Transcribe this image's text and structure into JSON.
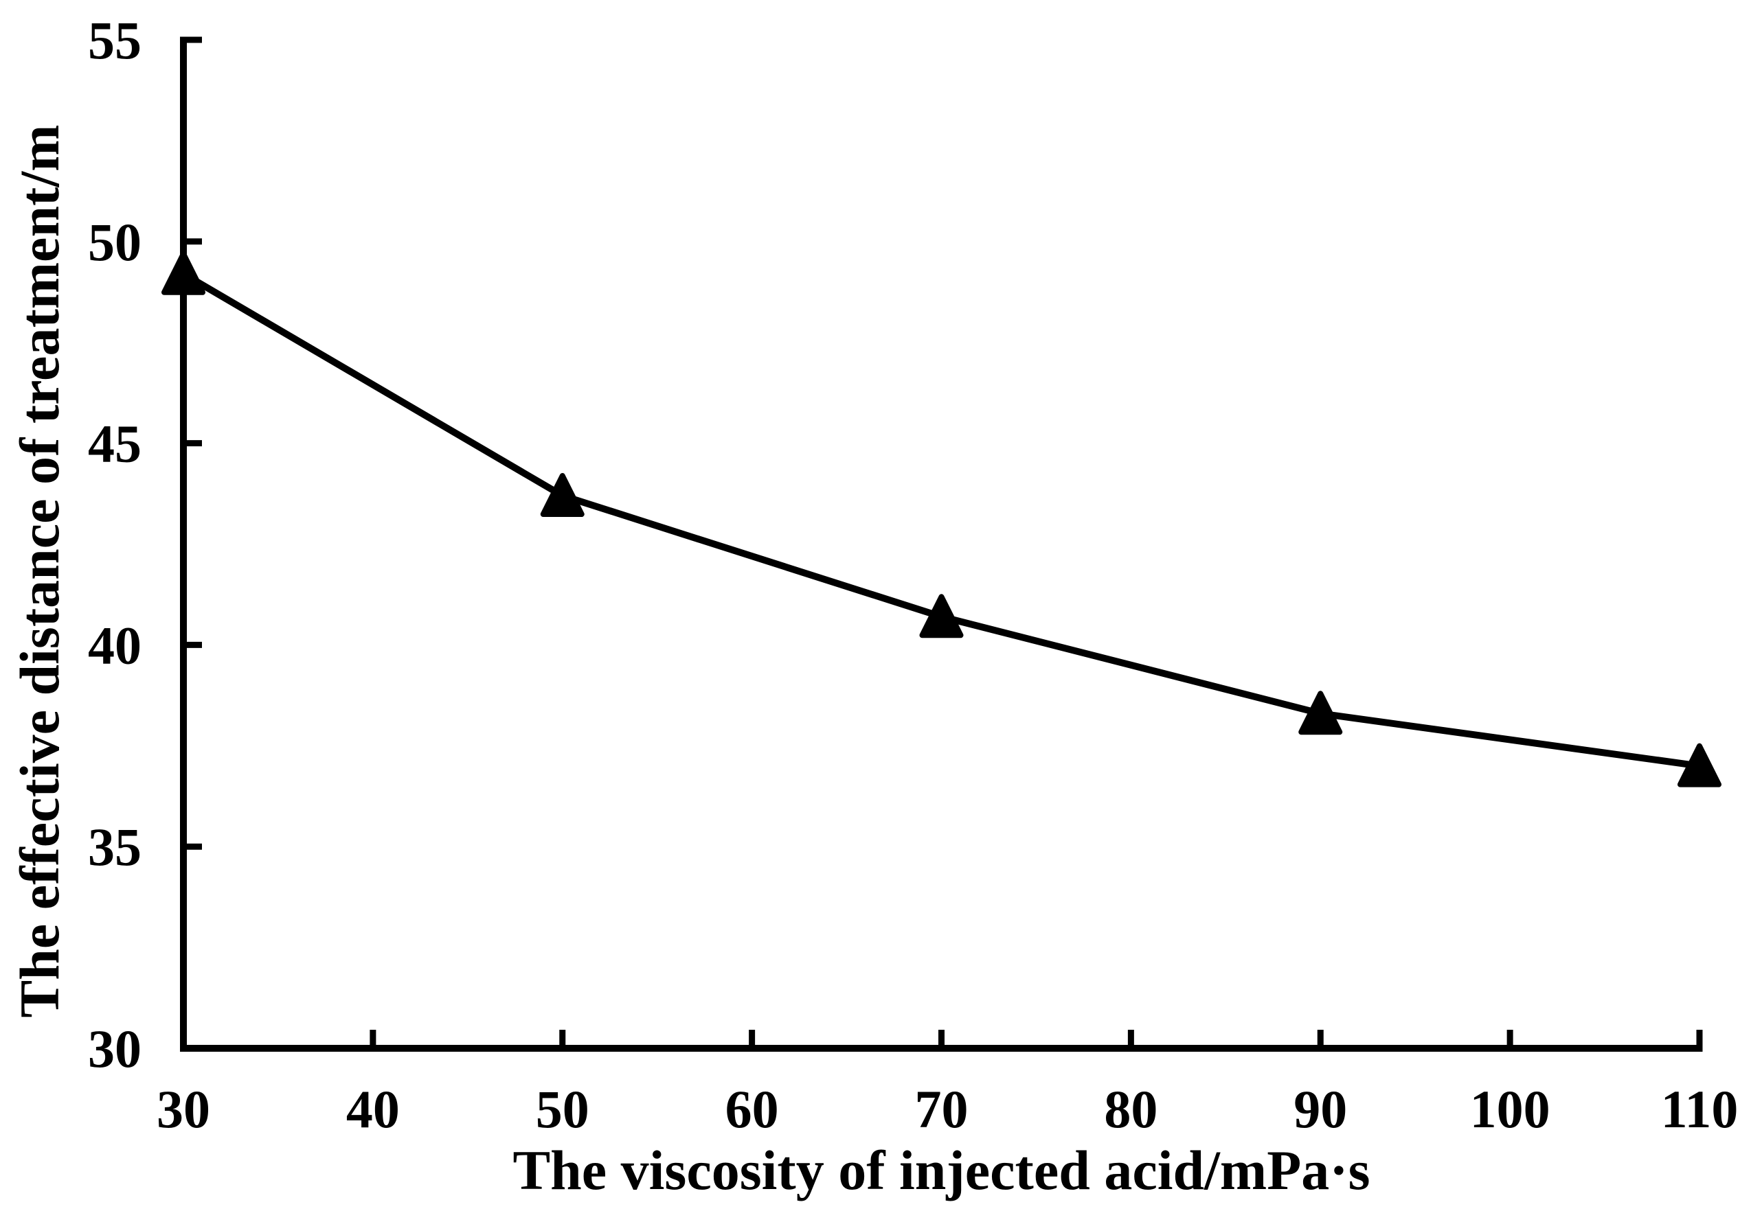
{
  "chart_data": {
    "type": "line",
    "title": "",
    "xlabel": "The viscosity of injected acid/mPa·s",
    "ylabel": "The effective distance of treatment/m",
    "x": [
      30,
      50,
      70,
      90,
      110
    ],
    "series": [
      {
        "name": "effective-distance-of-treatment",
        "values": [
          49.2,
          43.7,
          40.7,
          38.3,
          37.0
        ],
        "marker": "filled-triangle-up",
        "color": "#000000"
      }
    ],
    "x_axis": {
      "min": 30,
      "max": 110,
      "tick_step": 10,
      "ticks": [
        30,
        40,
        50,
        60,
        70,
        80,
        90,
        100,
        110
      ]
    },
    "y_axis": {
      "min": 30,
      "max": 55,
      "tick_step": 5,
      "ticks": [
        30,
        35,
        40,
        45,
        50,
        55
      ]
    },
    "grid": false,
    "legend": "none",
    "ink_color": "#000000",
    "background_color": "#ffffff"
  }
}
